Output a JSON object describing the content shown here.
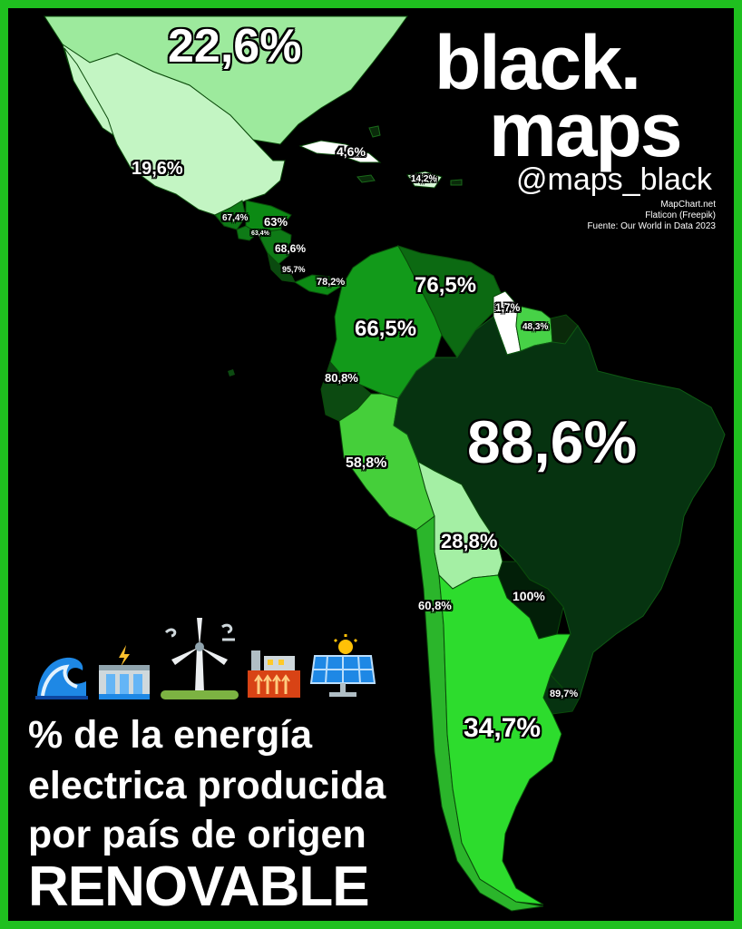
{
  "brand": {
    "line1": "black.",
    "line2": "maps",
    "handle": "@maps_black"
  },
  "credits": [
    "MapChart.net",
    "Flaticon (Freepik)",
    "Fuente: Our World in Data 2023"
  ],
  "title": {
    "line1": "% de la energía",
    "line2": "electrica producida",
    "line3": "por país de origen",
    "line4": "RENOVABLE"
  },
  "icons": [
    "wave-icon",
    "hydro-dam-icon",
    "wind-turbine-icon",
    "geothermal-plant-icon",
    "solar-panel-icon"
  ],
  "colors": {
    "border": "#1fc01f",
    "background": "#000000"
  },
  "regions": [
    {
      "label": "22,6%",
      "fill": "#9dea9d"
    },
    {
      "label": "19,6%",
      "fill": "#c3f5c3"
    },
    {
      "label": "4,6%",
      "fill": "#ffffff"
    },
    {
      "label": "14,2%",
      "fill": "#d9f7d9"
    },
    {
      "label": "67,4%",
      "fill": "#0e7a16"
    },
    {
      "label": "63%",
      "fill": "#0c8a14"
    },
    {
      "label": "63,4%",
      "fill": "#0e7a16"
    },
    {
      "label": "68,6%",
      "fill": "#0e7a16"
    },
    {
      "label": "95,7%",
      "fill": "#0a4a0f"
    },
    {
      "label": "78,2%",
      "fill": "#0c8a14"
    },
    {
      "label": "76,5%",
      "fill": "#0c6a12"
    },
    {
      "label": "66,5%",
      "fill": "#129a1a"
    },
    {
      "label": "1,7%",
      "fill": "#ffffff"
    },
    {
      "label": "48,3%",
      "fill": "#47d247"
    },
    {
      "label": "80,8%",
      "fill": "#0c4a11"
    },
    {
      "label": "88,6%",
      "fill": "#063310"
    },
    {
      "label": "58,8%",
      "fill": "#45cf3a"
    },
    {
      "label": "28,8%",
      "fill": "#a4efa4"
    },
    {
      "label": "100%",
      "fill": "#021f08"
    },
    {
      "label": "60,8%",
      "fill": "#2bb52b"
    },
    {
      "label": "89,7%",
      "fill": "#063310"
    },
    {
      "label": "34,7%",
      "fill": "#2ddc2d"
    }
  ]
}
